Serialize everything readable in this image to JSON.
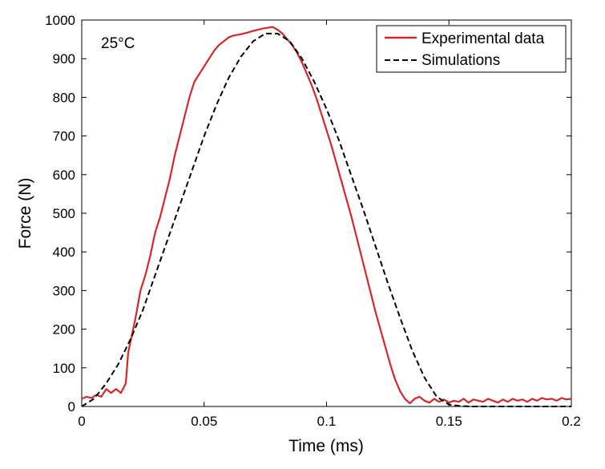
{
  "chart_data": {
    "type": "line",
    "xlabel": "Time (ms)",
    "ylabel": "Force (N)",
    "xlim": [
      0,
      0.2
    ],
    "ylim": [
      0,
      1000
    ],
    "xticks": [
      0,
      0.05,
      0.1,
      0.15,
      0.2
    ],
    "xtick_labels": [
      "0",
      "0.05",
      "0.1",
      "0.15",
      "0.2"
    ],
    "yticks": [
      0,
      100,
      200,
      300,
      400,
      500,
      600,
      700,
      800,
      900,
      1000
    ],
    "ytick_labels": [
      "0",
      "100",
      "200",
      "300",
      "400",
      "500",
      "600",
      "700",
      "800",
      "900",
      "1000"
    ],
    "grid": false,
    "legend_position": "top-right",
    "annotation": "25°C",
    "series": [
      {
        "name": "Experimental data",
        "color": "#d62728",
        "style": "solid",
        "x": [
          0,
          0.002,
          0.004,
          0.006,
          0.008,
          0.01,
          0.012,
          0.014,
          0.016,
          0.018,
          0.019,
          0.02,
          0.022,
          0.024,
          0.026,
          0.028,
          0.03,
          0.032,
          0.034,
          0.036,
          0.038,
          0.04,
          0.042,
          0.044,
          0.046,
          0.048,
          0.05,
          0.052,
          0.054,
          0.056,
          0.058,
          0.06,
          0.062,
          0.064,
          0.066,
          0.068,
          0.07,
          0.072,
          0.074,
          0.076,
          0.078,
          0.08,
          0.082,
          0.084,
          0.086,
          0.088,
          0.09,
          0.092,
          0.094,
          0.096,
          0.098,
          0.1,
          0.102,
          0.104,
          0.106,
          0.108,
          0.11,
          0.112,
          0.114,
          0.116,
          0.118,
          0.12,
          0.122,
          0.124,
          0.126,
          0.128,
          0.13,
          0.132,
          0.134,
          0.136,
          0.138,
          0.14,
          0.142,
          0.144,
          0.146,
          0.148,
          0.15,
          0.152,
          0.154,
          0.156,
          0.158,
          0.16,
          0.162,
          0.164,
          0.166,
          0.168,
          0.17,
          0.172,
          0.174,
          0.176,
          0.178,
          0.18,
          0.182,
          0.184,
          0.186,
          0.188,
          0.19,
          0.192,
          0.194,
          0.196,
          0.198,
          0.2
        ],
        "y": [
          20,
          25,
          22,
          30,
          25,
          45,
          35,
          45,
          35,
          60,
          140,
          170,
          230,
          300,
          340,
          390,
          450,
          490,
          540,
          590,
          650,
          700,
          750,
          800,
          840,
          860,
          880,
          900,
          920,
          935,
          945,
          955,
          960,
          962,
          965,
          968,
          972,
          975,
          978,
          980,
          982,
          975,
          965,
          950,
          935,
          915,
          890,
          860,
          830,
          795,
          755,
          715,
          675,
          630,
          585,
          540,
          495,
          445,
          395,
          345,
          295,
          245,
          200,
          155,
          110,
          70,
          40,
          20,
          8,
          20,
          25,
          15,
          10,
          20,
          12,
          18,
          10,
          15,
          12,
          20,
          10,
          18,
          15,
          12,
          20,
          15,
          10,
          18,
          12,
          20,
          15,
          18,
          12,
          20,
          15,
          22,
          18,
          20,
          15,
          22,
          18,
          20
        ]
      },
      {
        "name": "Simulations",
        "color": "#000000",
        "style": "dashed",
        "x": [
          0,
          0.005,
          0.01,
          0.015,
          0.02,
          0.025,
          0.03,
          0.035,
          0.04,
          0.045,
          0.05,
          0.055,
          0.06,
          0.065,
          0.07,
          0.075,
          0.08,
          0.085,
          0.09,
          0.095,
          0.1,
          0.105,
          0.11,
          0.115,
          0.12,
          0.125,
          0.13,
          0.135,
          0.14,
          0.145,
          0.15,
          0.155,
          0.16,
          0.165,
          0.17,
          0.175,
          0.18,
          0.185,
          0.19,
          0.195,
          0.2
        ],
        "y": [
          0,
          20,
          60,
          110,
          175,
          250,
          340,
          430,
          520,
          610,
          700,
          780,
          850,
          905,
          945,
          965,
          965,
          945,
          900,
          840,
          770,
          690,
          600,
          510,
          415,
          320,
          230,
          145,
          75,
          25,
          5,
          1,
          0,
          0,
          0,
          0,
          0,
          0,
          0,
          0,
          0
        ]
      }
    ]
  }
}
